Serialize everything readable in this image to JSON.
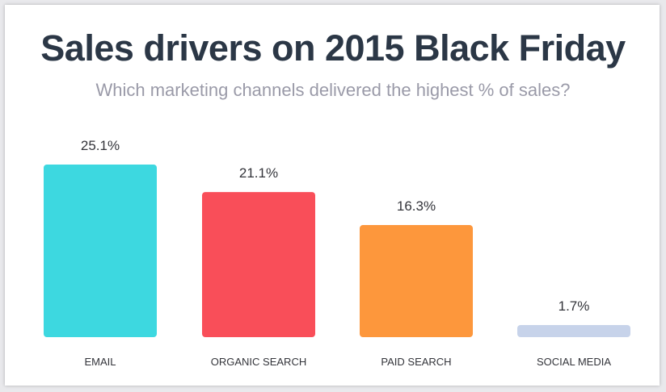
{
  "title": "Sales drivers on 2015 Black Friday",
  "subtitle": "Which marketing channels delivered the highest % of sales?",
  "chart_data": {
    "type": "bar",
    "title": "Sales drivers on 2015 Black Friday",
    "subtitle": "Which marketing channels delivered the highest % of sales?",
    "categories": [
      "EMAIL",
      "ORGANIC SEARCH",
      "PAID SEARCH",
      "SOCIAL MEDIA"
    ],
    "values": [
      25.1,
      21.1,
      16.3,
      1.7
    ],
    "value_labels": [
      "25.1%",
      "21.1%",
      "16.3%",
      "1.7%"
    ],
    "colors": [
      "#3dd8e0",
      "#f94e59",
      "#fd973c",
      "#c7d3ea"
    ],
    "grid": false,
    "legend": "none",
    "ylim": [
      0,
      25.1
    ]
  }
}
